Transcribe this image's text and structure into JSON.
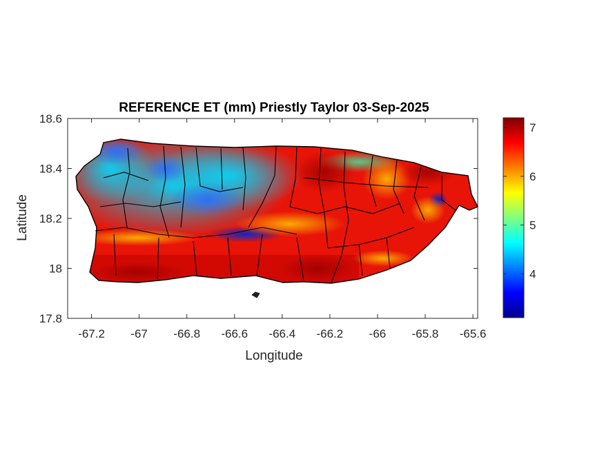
{
  "title": "REFERENCE ET (mm) Priestly Taylor 03-Sep-2025",
  "x_axis": {
    "label": "Longitude",
    "range": [
      -67.3,
      -65.58
    ],
    "ticks": [
      -67.2,
      -67,
      -66.8,
      -66.6,
      -66.4,
      -66.2,
      -66,
      -65.8,
      -65.6
    ],
    "tick_labels": [
      "-67.2",
      "-67",
      "-66.8",
      "-66.6",
      "-66.4",
      "-66.2",
      "-66",
      "-65.8",
      "-65.6"
    ]
  },
  "y_axis": {
    "label": "Latitude",
    "range": [
      17.8,
      18.6
    ],
    "ticks": [
      17.8,
      18,
      18.2,
      18.4,
      18.6
    ],
    "tick_labels": [
      "17.8",
      "18",
      "18.2",
      "18.4",
      "18.6"
    ]
  },
  "colorbar": {
    "colormap": "jet",
    "range": [
      3.1,
      7.2
    ],
    "ticks": [
      4,
      5,
      6,
      7
    ],
    "tick_labels": [
      "4",
      "5",
      "6",
      "7"
    ]
  },
  "map": {
    "region": "Puerto Rico",
    "variable": "Reference ET (mm)",
    "pattern": "low values (about 4 to 5 mm, blue/cyan) over the northwest and central interior; high values (about 6.5 to 7 mm, red) along the south coast and across the east",
    "municipality_boundaries": true
  }
}
